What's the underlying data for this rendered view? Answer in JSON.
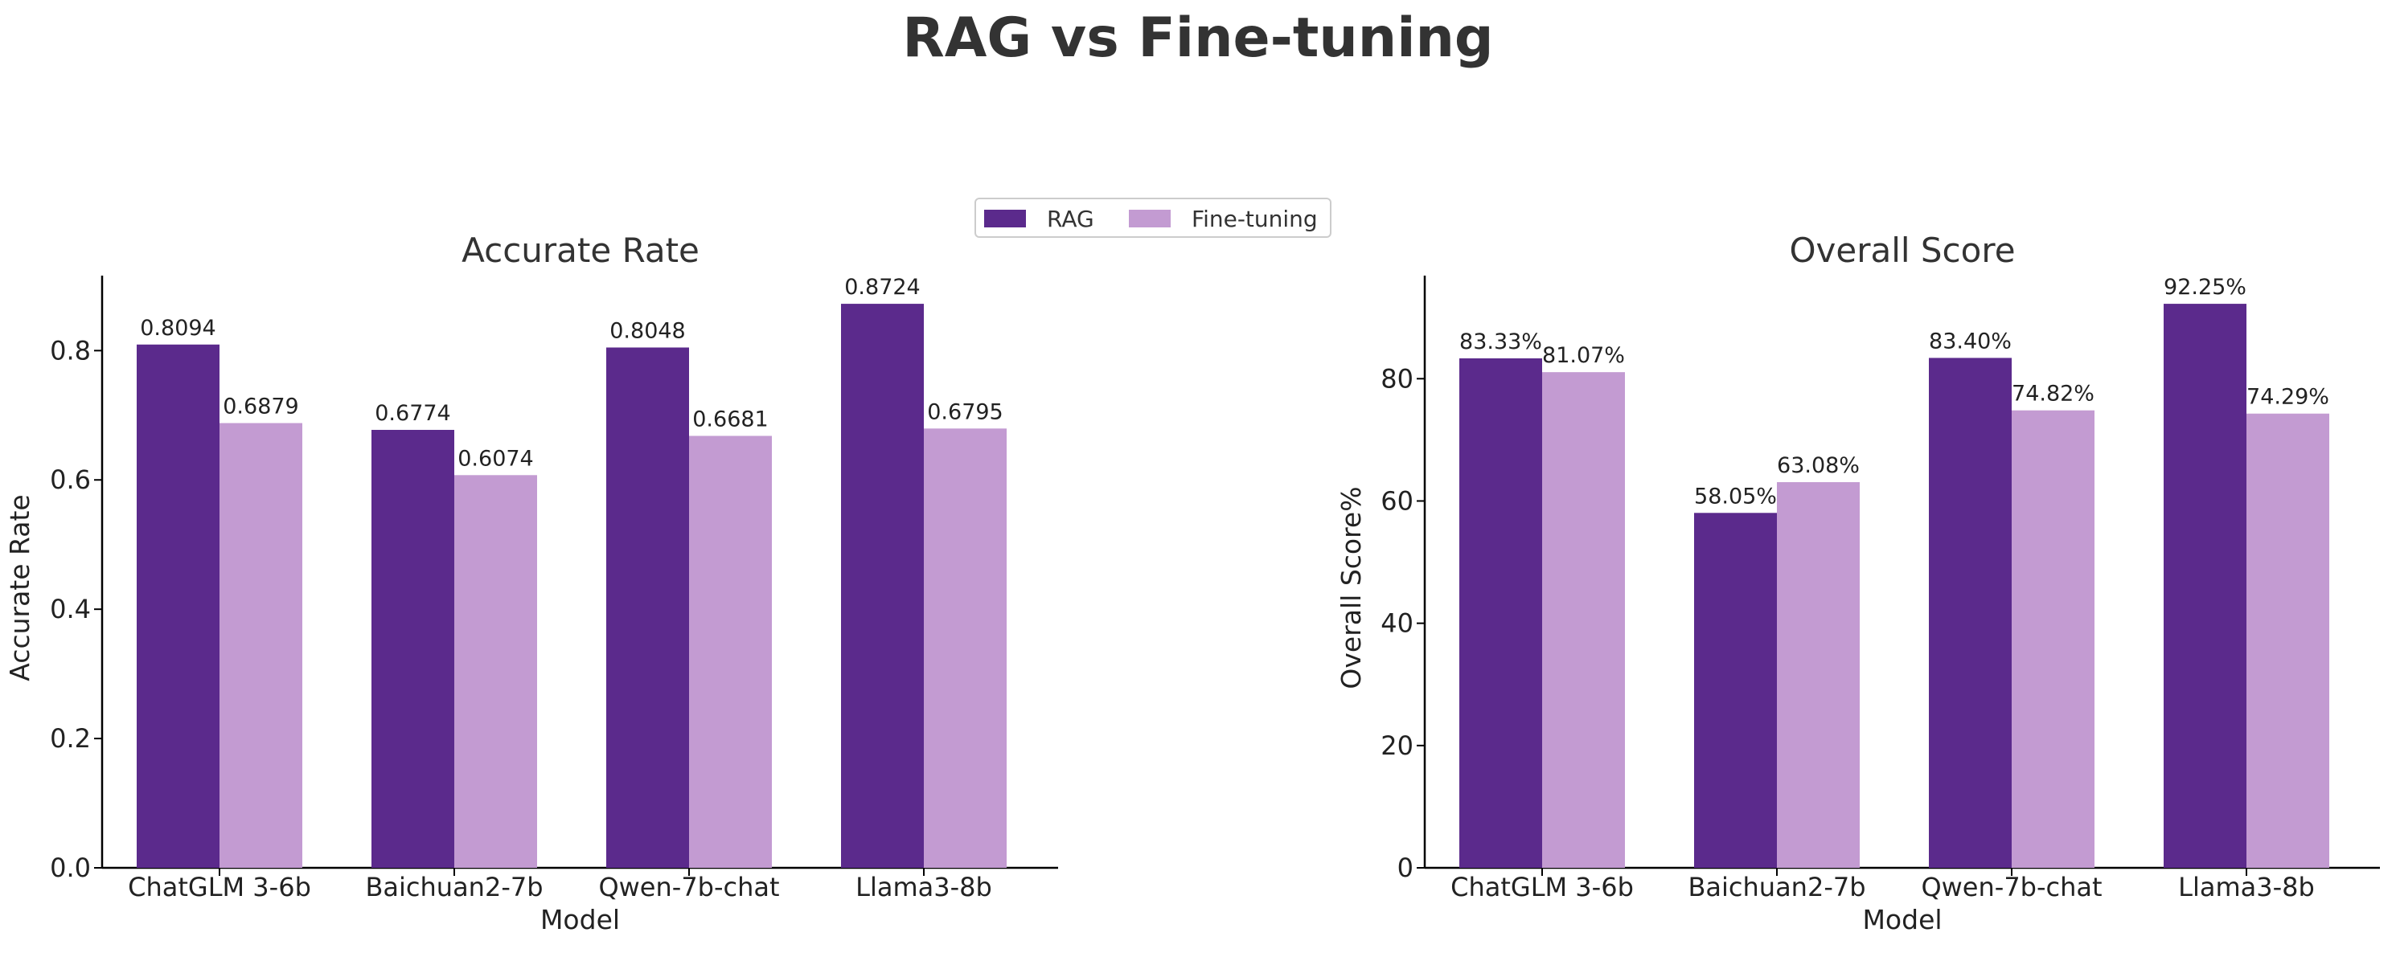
{
  "title": "RAG vs Fine-tuning",
  "legend": {
    "placement": "top-center",
    "items": [
      {
        "name": "RAG",
        "color": "#5b2a8c"
      },
      {
        "name": "Fine-tuning",
        "color": "#c39bd2"
      }
    ]
  },
  "chart_data": [
    {
      "type": "bar",
      "title": "Accurate Rate",
      "xlabel": "Model",
      "ylabel": "Accurate Rate",
      "categories": [
        "ChatGLM 3-6b",
        "Baichuan2-7b",
        "Qwen-7b-chat",
        "Llama3-8b"
      ],
      "ylim": [
        0,
        0.916
      ],
      "yticks": [
        "0.0",
        "0.2",
        "0.4",
        "0.6",
        "0.8"
      ],
      "ytick_values": [
        0,
        0.2,
        0.4,
        0.6,
        0.8
      ],
      "series": [
        {
          "name": "RAG",
          "values": [
            0.8094,
            0.6774,
            0.8048,
            0.8724
          ],
          "labels": [
            "0.8094",
            "0.6774",
            "0.8048",
            "0.8724"
          ]
        },
        {
          "name": "Fine-tuning",
          "values": [
            0.6879,
            0.6074,
            0.6681,
            0.6795
          ],
          "labels": [
            "0.6879",
            "0.6074",
            "0.6681",
            "0.6795"
          ]
        }
      ]
    },
    {
      "type": "bar",
      "title": "Overall Score",
      "xlabel": "Model",
      "ylabel": "Overall Score%",
      "categories": [
        "ChatGLM 3-6b",
        "Baichuan2-7b",
        "Qwen-7b-chat",
        "Llama3-8b"
      ],
      "ylim": [
        0,
        96.86
      ],
      "yticks": [
        "0",
        "20",
        "40",
        "60",
        "80"
      ],
      "ytick_values": [
        0,
        20,
        40,
        60,
        80
      ],
      "series": [
        {
          "name": "RAG",
          "values": [
            83.33,
            58.05,
            83.4,
            92.25
          ],
          "labels": [
            "83.33%",
            "58.05%",
            "83.40%",
            "92.25%"
          ]
        },
        {
          "name": "Fine-tuning",
          "values": [
            81.07,
            63.08,
            74.82,
            74.29
          ],
          "labels": [
            "81.07%",
            "63.08%",
            "74.82%",
            "74.29%"
          ]
        }
      ]
    }
  ]
}
